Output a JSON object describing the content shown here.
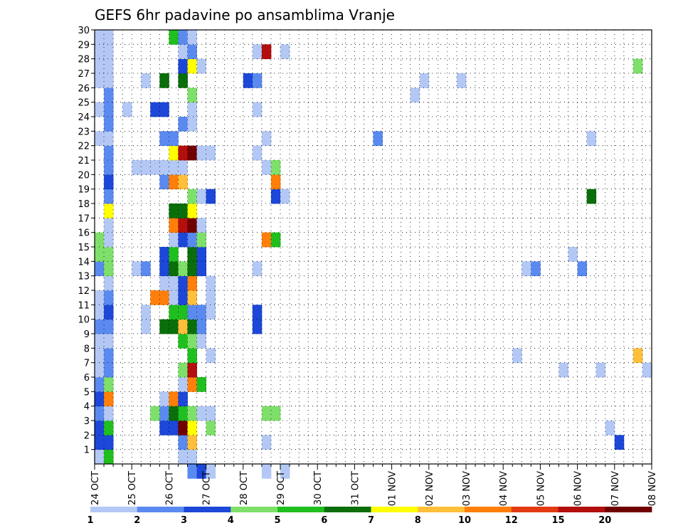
{
  "chart_data": {
    "type": "heatmap",
    "title": "GEFS 6hr padavine po ansamblima Vranje",
    "xlabel": "",
    "ylabel": "",
    "x_start_date_label": "24 OCT",
    "x_tick_labels": [
      "24 OCT",
      "25 OCT",
      "26 OCT",
      "27 OCT",
      "28 OCT",
      "29 OCT",
      "30 OCT",
      "31 OCT",
      "01 NOV",
      "02 NOV",
      "03 NOV",
      "04 NOV",
      "05 NOV",
      "06 NOV",
      "07 NOV",
      "08 NOV"
    ],
    "y_tick_labels": [
      "1",
      "2",
      "3",
      "4",
      "5",
      "6",
      "7",
      "8",
      "9",
      "10",
      "11",
      "12",
      "13",
      "14",
      "15",
      "16",
      "17",
      "18",
      "19",
      "20",
      "21",
      "22",
      "23",
      "24",
      "25",
      "26",
      "27",
      "28",
      "29",
      "30"
    ],
    "xlim_steps": [
      0,
      60
    ],
    "steps_per_day": 4,
    "ylim_members": [
      0,
      30
    ],
    "colorbar": {
      "labels": [
        "1",
        "2",
        "3",
        "4",
        "5",
        "6",
        "7",
        "8",
        "10",
        "12",
        "15",
        "20"
      ],
      "colors": [
        "#b4c8f5",
        "#5a8af0",
        "#1c47d8",
        "#7ee06a",
        "#1fbf1f",
        "#0a6e0a",
        "#ffff00",
        "#ffbf3a",
        "#ff7f0a",
        "#e43a12",
        "#b30f0f",
        "#700000"
      ]
    },
    "cells": [
      [
        0,
        0,
        1
      ],
      [
        0,
        1,
        3
      ],
      [
        0,
        2,
        3
      ],
      [
        0,
        3,
        2
      ],
      [
        0,
        4,
        3
      ],
      [
        0,
        5,
        2
      ],
      [
        0,
        6,
        1
      ],
      [
        0,
        7,
        1
      ],
      [
        0,
        8,
        1
      ],
      [
        0,
        9,
        2
      ],
      [
        0,
        10,
        1
      ],
      [
        0,
        11,
        1
      ],
      [
        0,
        13,
        2
      ],
      [
        0,
        14,
        4
      ],
      [
        0,
        15,
        4
      ],
      [
        0,
        22,
        1
      ],
      [
        0,
        24,
        1
      ],
      [
        0,
        26,
        1
      ],
      [
        0,
        27,
        1
      ],
      [
        0,
        28,
        1
      ],
      [
        0,
        29,
        1
      ],
      [
        1,
        0,
        5
      ],
      [
        1,
        1,
        3
      ],
      [
        1,
        2,
        5
      ],
      [
        1,
        3,
        1
      ],
      [
        1,
        4,
        9
      ],
      [
        1,
        5,
        4
      ],
      [
        1,
        6,
        2
      ],
      [
        1,
        7,
        2
      ],
      [
        1,
        8,
        1
      ],
      [
        1,
        9,
        2
      ],
      [
        1,
        10,
        3
      ],
      [
        1,
        11,
        2
      ],
      [
        1,
        12,
        1
      ],
      [
        1,
        13,
        4
      ],
      [
        1,
        14,
        4
      ],
      [
        1,
        15,
        1
      ],
      [
        1,
        16,
        1
      ],
      [
        1,
        17,
        7
      ],
      [
        1,
        18,
        2
      ],
      [
        1,
        19,
        3
      ],
      [
        1,
        20,
        2
      ],
      [
        1,
        21,
        2
      ],
      [
        1,
        22,
        1
      ],
      [
        1,
        23,
        2
      ],
      [
        1,
        24,
        2
      ],
      [
        1,
        25,
        2
      ],
      [
        1,
        26,
        1
      ],
      [
        1,
        27,
        1
      ],
      [
        1,
        28,
        1
      ],
      [
        1,
        29,
        1
      ],
      [
        3,
        24,
        1
      ],
      [
        4,
        13,
        1
      ],
      [
        4,
        20,
        1
      ],
      [
        5,
        9,
        1
      ],
      [
        5,
        10,
        1
      ],
      [
        5,
        13,
        2
      ],
      [
        5,
        20,
        1
      ],
      [
        5,
        26,
        1
      ],
      [
        6,
        3,
        4
      ],
      [
        6,
        11,
        9
      ],
      [
        6,
        20,
        1
      ],
      [
        6,
        24,
        3
      ],
      [
        7,
        2,
        3
      ],
      [
        7,
        3,
        2
      ],
      [
        7,
        4,
        1
      ],
      [
        7,
        9,
        6
      ],
      [
        7,
        11,
        9
      ],
      [
        7,
        12,
        1
      ],
      [
        7,
        13,
        3
      ],
      [
        7,
        14,
        3
      ],
      [
        7,
        19,
        2
      ],
      [
        7,
        20,
        1
      ],
      [
        7,
        22,
        2
      ],
      [
        7,
        24,
        3
      ],
      [
        7,
        26,
        6
      ],
      [
        8,
        2,
        3
      ],
      [
        8,
        3,
        6
      ],
      [
        8,
        4,
        9
      ],
      [
        8,
        9,
        6
      ],
      [
        8,
        10,
        5
      ],
      [
        8,
        11,
        1
      ],
      [
        8,
        12,
        1
      ],
      [
        8,
        13,
        6
      ],
      [
        8,
        14,
        5
      ],
      [
        8,
        15,
        1
      ],
      [
        8,
        16,
        9
      ],
      [
        8,
        17,
        6
      ],
      [
        8,
        19,
        9
      ],
      [
        8,
        20,
        1
      ],
      [
        8,
        21,
        7
      ],
      [
        8,
        22,
        2
      ],
      [
        8,
        29,
        5
      ],
      [
        9,
        0,
        1
      ],
      [
        9,
        1,
        2
      ],
      [
        9,
        2,
        12
      ],
      [
        9,
        3,
        5
      ],
      [
        9,
        4,
        3
      ],
      [
        9,
        5,
        1
      ],
      [
        9,
        6,
        4
      ],
      [
        9,
        8,
        5
      ],
      [
        9,
        9,
        8
      ],
      [
        9,
        10,
        5
      ],
      [
        9,
        11,
        3
      ],
      [
        9,
        12,
        3
      ],
      [
        9,
        13,
        4
      ],
      [
        9,
        15,
        3
      ],
      [
        9,
        16,
        11
      ],
      [
        9,
        17,
        6
      ],
      [
        9,
        19,
        8
      ],
      [
        9,
        20,
        1
      ],
      [
        9,
        21,
        11
      ],
      [
        9,
        23,
        2
      ],
      [
        9,
        26,
        6
      ],
      [
        9,
        27,
        3
      ],
      [
        9,
        28,
        1
      ],
      [
        9,
        29,
        2
      ],
      [
        10,
        -1,
        2
      ],
      [
        10,
        0,
        1
      ],
      [
        10,
        1,
        8
      ],
      [
        10,
        2,
        7
      ],
      [
        10,
        3,
        4
      ],
      [
        10,
        5,
        9
      ],
      [
        10,
        6,
        11
      ],
      [
        10,
        7,
        5
      ],
      [
        10,
        8,
        4
      ],
      [
        10,
        9,
        6
      ],
      [
        10,
        10,
        2
      ],
      [
        10,
        11,
        8
      ],
      [
        10,
        12,
        9
      ],
      [
        10,
        13,
        6
      ],
      [
        10,
        14,
        6
      ],
      [
        10,
        15,
        2
      ],
      [
        10,
        16,
        12
      ],
      [
        10,
        17,
        7
      ],
      [
        10,
        18,
        4
      ],
      [
        10,
        21,
        12
      ],
      [
        10,
        23,
        1
      ],
      [
        10,
        24,
        1
      ],
      [
        10,
        25,
        4
      ],
      [
        10,
        27,
        7
      ],
      [
        10,
        28,
        2
      ],
      [
        10,
        29,
        1
      ],
      [
        11,
        -1,
        3
      ],
      [
        11,
        3,
        1
      ],
      [
        11,
        5,
        5
      ],
      [
        11,
        8,
        1
      ],
      [
        11,
        9,
        2
      ],
      [
        11,
        10,
        2
      ],
      [
        11,
        13,
        3
      ],
      [
        11,
        14,
        3
      ],
      [
        11,
        15,
        4
      ],
      [
        11,
        16,
        1
      ],
      [
        11,
        18,
        1
      ],
      [
        11,
        21,
        1
      ],
      [
        11,
        27,
        1
      ],
      [
        12,
        -1,
        1
      ],
      [
        12,
        2,
        4
      ],
      [
        12,
        3,
        1
      ],
      [
        12,
        7,
        1
      ],
      [
        12,
        10,
        1
      ],
      [
        12,
        11,
        1
      ],
      [
        12,
        12,
        1
      ],
      [
        12,
        18,
        3
      ],
      [
        12,
        21,
        1
      ],
      [
        16,
        26,
        3
      ],
      [
        17,
        9,
        3
      ],
      [
        17,
        10,
        3
      ],
      [
        17,
        13,
        1
      ],
      [
        17,
        21,
        1
      ],
      [
        17,
        24,
        1
      ],
      [
        17,
        26,
        2
      ],
      [
        17,
        28,
        1
      ],
      [
        18,
        -1,
        1
      ],
      [
        18,
        1,
        1
      ],
      [
        18,
        3,
        4
      ],
      [
        18,
        15,
        9
      ],
      [
        18,
        20,
        1
      ],
      [
        18,
        22,
        1
      ],
      [
        18,
        28,
        11
      ],
      [
        19,
        3,
        4
      ],
      [
        19,
        15,
        5
      ],
      [
        19,
        18,
        3
      ],
      [
        19,
        19,
        9
      ],
      [
        19,
        20,
        4
      ],
      [
        20,
        -1,
        1
      ],
      [
        20,
        18,
        1
      ],
      [
        20,
        28,
        1
      ],
      [
        30,
        22,
        2
      ],
      [
        34,
        25,
        1
      ],
      [
        35,
        26,
        1
      ],
      [
        39,
        26,
        1
      ],
      [
        45,
        7,
        1
      ],
      [
        46,
        13,
        1
      ],
      [
        47,
        13,
        2
      ],
      [
        50,
        6,
        1
      ],
      [
        51,
        14,
        1
      ],
      [
        52,
        13,
        2
      ],
      [
        53,
        18,
        6
      ],
      [
        53,
        22,
        1
      ],
      [
        54,
        6,
        1
      ],
      [
        55,
        2,
        1
      ],
      [
        56,
        1,
        3
      ],
      [
        58,
        7,
        8
      ],
      [
        58,
        27,
        4
      ],
      [
        59,
        6,
        1
      ]
    ]
  }
}
